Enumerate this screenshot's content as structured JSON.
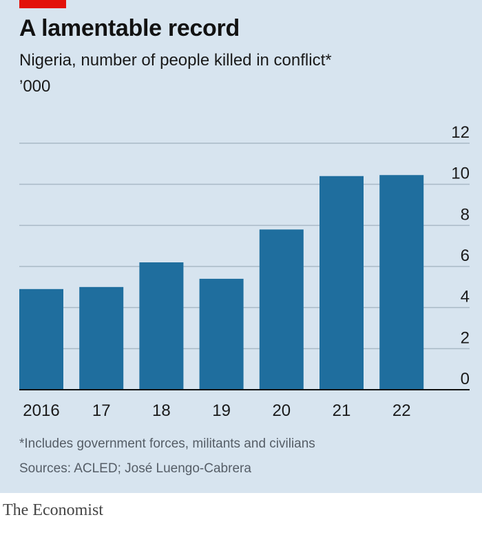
{
  "colors": {
    "background": "#d7e4ef",
    "bar": "#1f6e9e",
    "gridline": "#a9b9c6",
    "axis": "#121212",
    "accent": "#e3120b"
  },
  "header": {
    "title": "A lamentable record",
    "subtitle": "Nigeria, number of people killed in conflict*",
    "unit": "’000"
  },
  "footer": {
    "footnote": "*Includes government forces, militants and civilians",
    "source": "Sources: ACLED; José Luengo-Cabrera",
    "brand": "The Economist"
  },
  "chart_data": {
    "type": "bar",
    "categories": [
      "2016",
      "17",
      "18",
      "19",
      "20",
      "21",
      "22"
    ],
    "values": [
      4.9,
      5.0,
      6.2,
      5.4,
      7.8,
      10.4,
      10.45
    ],
    "title": "A lamentable record",
    "subtitle": "Nigeria, number of people killed in conflict*",
    "ylabel": "’000",
    "ylim": [
      0,
      12
    ],
    "yticks": [
      0,
      2,
      4,
      6,
      8,
      10,
      12
    ],
    "grid": true,
    "y_axis_position": "right",
    "legend": "none"
  }
}
